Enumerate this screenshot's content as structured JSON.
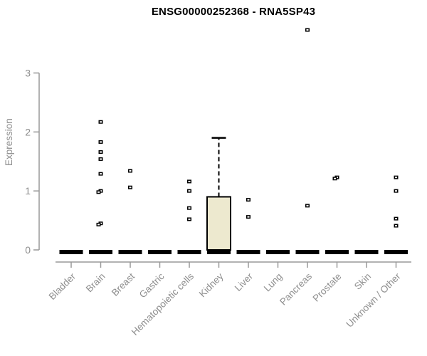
{
  "chart_data": {
    "type": "boxplot",
    "title": "ENSG00000252368 - RNA5SP43",
    "ylabel": "Expression",
    "xlabel": "",
    "ylim": [
      0,
      3
    ],
    "yticks": [
      0,
      1,
      2,
      3
    ],
    "grid": "off",
    "legend": "none",
    "categories": [
      "Bladder",
      "Brain",
      "Breast",
      "Gastric",
      "Hematopoietic cells",
      "Kidney",
      "Liver",
      "Lung",
      "Pancreas",
      "Prostate",
      "Skin",
      "Unknown / Other"
    ],
    "boxes": [
      {
        "category": "Bladder",
        "whisker_low": 0,
        "q1": 0,
        "median": 0,
        "q3": 0,
        "whisker_high": 0,
        "outliers": []
      },
      {
        "category": "Brain",
        "whisker_low": 0,
        "q1": 0,
        "median": 0,
        "q3": 0,
        "whisker_high": 0,
        "outliers": [
          2.17,
          1.83,
          1.66,
          1.54,
          1.29,
          1.0,
          0.98,
          0.45,
          0.43
        ]
      },
      {
        "category": "Breast",
        "whisker_low": 0,
        "q1": 0,
        "median": 0,
        "q3": 0,
        "whisker_high": 0,
        "outliers": [
          1.34,
          1.06
        ]
      },
      {
        "category": "Gastric",
        "whisker_low": 0,
        "q1": 0,
        "median": 0,
        "q3": 0,
        "whisker_high": 0,
        "outliers": []
      },
      {
        "category": "Hematopoietic cells",
        "whisker_low": 0,
        "q1": 0,
        "median": 0,
        "q3": 0,
        "whisker_high": 0,
        "outliers": [
          1.16,
          1.0,
          0.71,
          0.52
        ]
      },
      {
        "category": "Kidney",
        "whisker_low": 0,
        "q1": 0,
        "median": 0,
        "q3": 0.9,
        "whisker_high": 1.9,
        "outliers": []
      },
      {
        "category": "Liver",
        "whisker_low": 0,
        "q1": 0,
        "median": 0,
        "q3": 0,
        "whisker_high": 0,
        "outliers": [
          0.85,
          0.56
        ]
      },
      {
        "category": "Lung",
        "whisker_low": 0,
        "q1": 0,
        "median": 0,
        "q3": 0,
        "whisker_high": 0,
        "outliers": []
      },
      {
        "category": "Pancreas",
        "whisker_low": 0,
        "q1": 0,
        "median": 0,
        "q3": 0,
        "whisker_high": 0,
        "outliers": [
          3.73,
          0.75
        ]
      },
      {
        "category": "Prostate",
        "whisker_low": 0,
        "q1": 0,
        "median": 0,
        "q3": 0,
        "whisker_high": 0,
        "outliers": [
          1.23,
          1.21
        ]
      },
      {
        "category": "Skin",
        "whisker_low": 0,
        "q1": 0,
        "median": 0,
        "q3": 0,
        "whisker_high": 0,
        "outliers": []
      },
      {
        "category": "Unknown / Other",
        "whisker_low": 0,
        "q1": 0,
        "median": 0,
        "q3": 0,
        "whisker_high": 0,
        "outliers": [
          1.23,
          1.0,
          0.53,
          0.41
        ]
      }
    ],
    "colors": {
      "box_fill": "#ede9cf",
      "box_stroke": "#000000",
      "median": "#000000",
      "outlier": "#000000",
      "axis": "#999999",
      "tick_label": "#8e8e8e",
      "title": "#000000",
      "background": "#ffffff"
    }
  }
}
